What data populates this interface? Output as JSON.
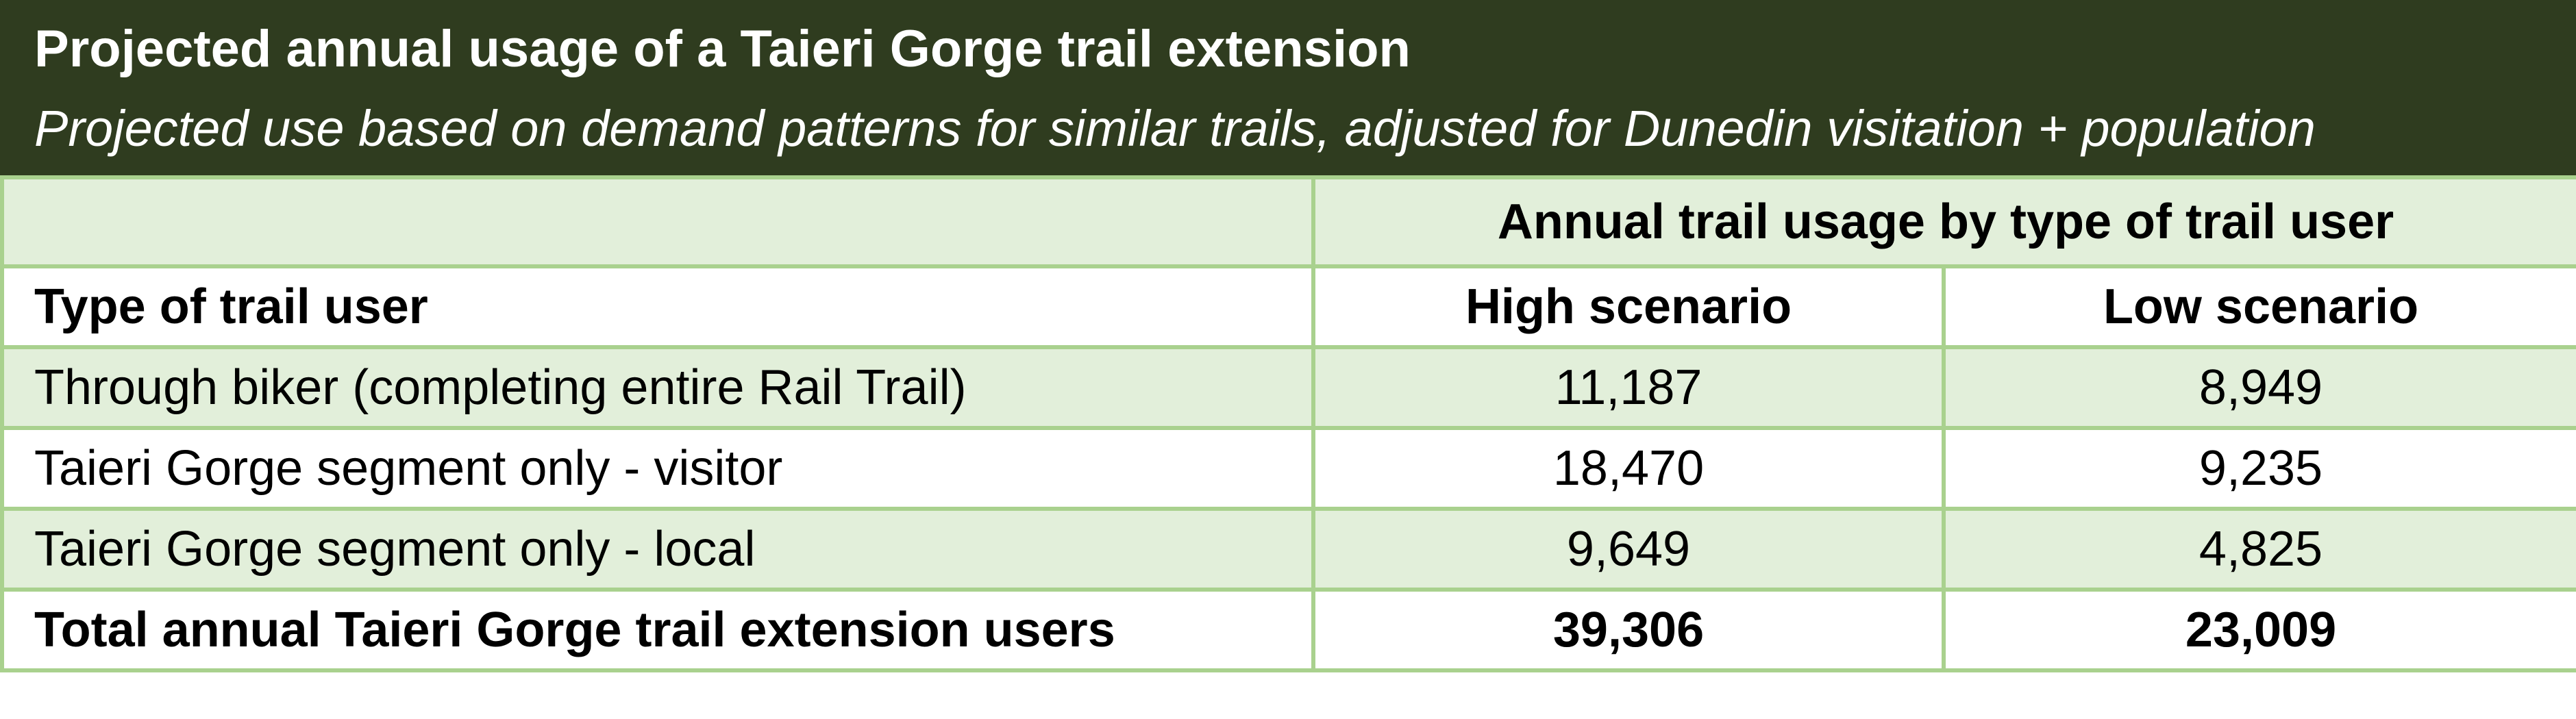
{
  "title": "Projected annual usage of a Taieri Gorge trail extension",
  "subtitle": "Projected use based on demand patterns for similar trails, adjusted for Dunedin visitation + population",
  "group_header": "Annual trail usage by type of trail user",
  "columns": {
    "type": "Type of trail user",
    "high": "High scenario",
    "low": "Low scenario"
  },
  "rows": [
    {
      "type": "Through biker (completing entire Rail Trail)",
      "high": "11,187",
      "low": "8,949"
    },
    {
      "type": "Taieri Gorge segment only - visitor",
      "high": "18,470",
      "low": "9,235"
    },
    {
      "type": "Taieri Gorge segment only - local",
      "high": "9,649",
      "low": "4,825"
    }
  ],
  "total": {
    "type": "Total annual Taieri Gorge trail extension users",
    "high": "39,306",
    "low": "23,009"
  },
  "colors": {
    "header_bg": "#2f3c1f",
    "row_shade": "#e2efda",
    "border": "#a9d18e"
  }
}
